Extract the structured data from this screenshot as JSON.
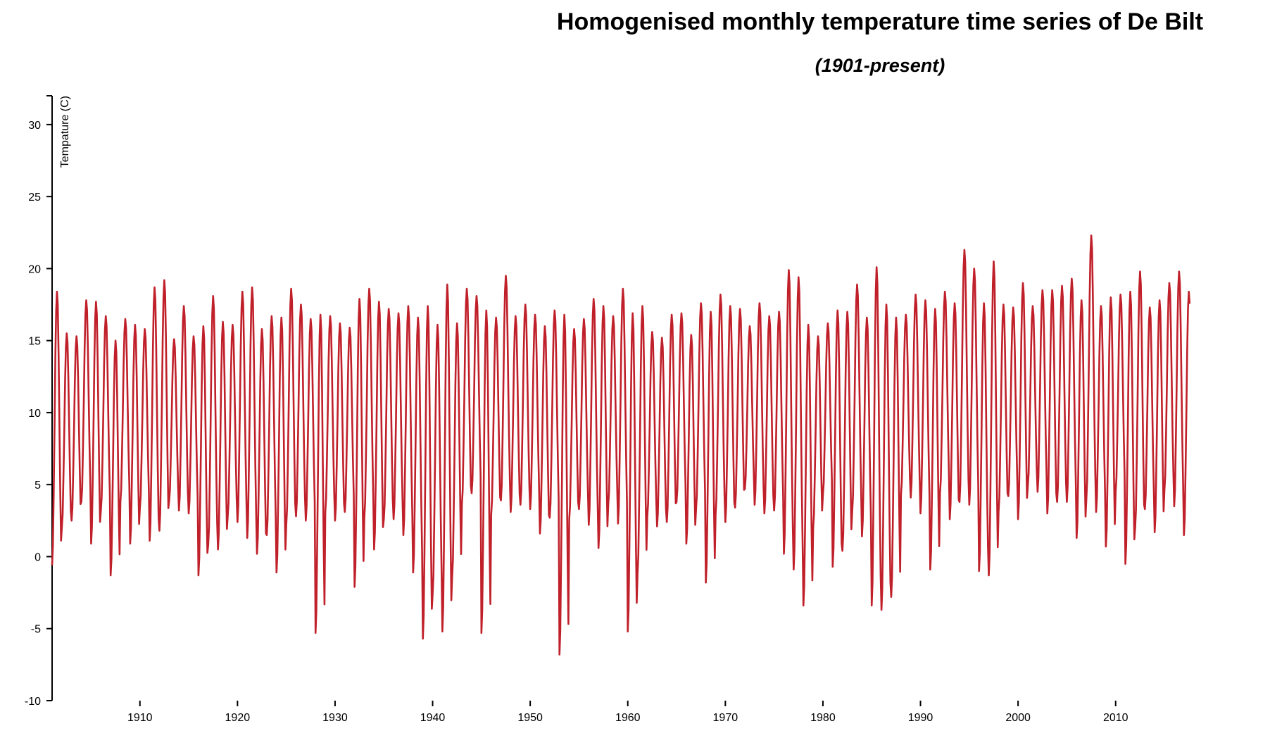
{
  "chart_data": {
    "type": "line",
    "title": "Homogenised monthly temperature time series of De Bilt",
    "subtitle": "(1901-present)",
    "ylabel": "Tempature (C)",
    "xlabel": "",
    "xlim": [
      1901,
      2018.1
    ],
    "ylim": [
      -10,
      32
    ],
    "x_ticks": [
      1910,
      1920,
      1930,
      1940,
      1950,
      1960,
      1970,
      1980,
      1990,
      2000,
      2010
    ],
    "y_ticks": [
      -10,
      -5,
      0,
      5,
      10,
      15,
      20,
      25,
      30
    ],
    "grid": false,
    "series": [
      {
        "color": "#c0202a",
        "start": "1901-01",
        "frequency": "monthly",
        "jan": [
          -0.6,
          2.0,
          2.5,
          3.8,
          0.9,
          3.2,
          -1.3,
          3.8,
          0.9,
          3.4,
          1.1,
          1.8,
          3.9,
          3.2,
          3.0,
          -1.3,
          0.8,
          0.5,
          2.8,
          2.4,
          1.3,
          0.2,
          1.5,
          -1.1,
          2.2,
          2.8,
          2.5,
          -5.3,
          3.1,
          2.5,
          3.1,
          -2.1,
          2.7,
          0.5,
          2.6,
          2.6,
          1.5,
          -1.1,
          -5.7,
          -2.6,
          -5.2,
          -1.4,
          3.6,
          4.4,
          -5.3,
          2.9,
          3.9,
          3.1,
          3.6,
          3.3,
          1.6,
          2.7,
          -6.8,
          2.6,
          3.3,
          2.2,
          0.6,
          3.6,
          2.3,
          -5.2,
          -1.2,
          2.8,
          2.1,
          2.4,
          3.8,
          0.9,
          3.3,
          -1.8,
          2.9,
          2.4,
          3.4,
          4.7,
          3.6,
          3.0,
          3.2,
          0.2,
          -0.9,
          -3.4,
          2.0,
          4.3,
          -0.7,
          0.4,
          3.1,
          1.4,
          -3.4,
          -3.7,
          -2.8,
          4.3,
          4.1,
          3.0,
          -0.9,
          4.4,
          2.6,
          3.8,
          3.6,
          -1.0,
          -1.3,
          3.1,
          4.2,
          2.6,
          4.9,
          4.5,
          3.0,
          3.8,
          3.8,
          1.3,
          4.0,
          3.1,
          0.7,
          4.5,
          -0.5,
          2.0,
          3.3,
          1.7,
          4.6,
          3.5,
          1.5
        ],
        "jul": [
          18.4,
          15.5,
          15.3,
          17.8,
          17.7,
          16.7,
          15.0,
          16.5,
          16.1,
          15.8,
          18.7,
          19.2,
          15.1,
          17.4,
          15.3,
          16.0,
          18.1,
          16.3,
          16.1,
          18.4,
          18.7,
          15.8,
          16.7,
          16.6,
          18.6,
          17.5,
          16.5,
          16.8,
          16.7,
          16.2,
          15.9,
          17.9,
          18.6,
          17.7,
          17.2,
          16.9,
          17.4,
          16.6,
          17.4,
          16.1,
          18.9,
          16.2,
          18.6,
          18.1,
          17.1,
          16.6,
          19.5,
          16.7,
          17.5,
          16.8,
          16.0,
          17.1,
          16.8,
          15.8,
          16.5,
          17.9,
          17.4,
          16.7,
          18.6,
          16.9,
          17.4,
          15.6,
          15.2,
          16.8,
          16.9,
          15.4,
          17.6,
          17.0,
          18.2,
          17.4,
          17.2,
          16.0,
          17.6,
          16.7,
          17.0,
          19.9,
          19.4,
          16.1,
          15.3,
          16.2,
          17.1,
          17.0,
          18.9,
          16.6,
          20.1,
          17.5,
          16.6,
          16.8,
          18.2,
          17.8,
          17.2,
          18.4,
          17.6,
          21.3,
          20.0,
          17.6,
          20.5,
          17.5,
          17.3,
          19.0,
          17.4,
          18.5,
          18.5,
          18.8,
          19.3,
          17.8,
          22.3,
          17.4,
          18.0,
          18.2,
          18.4,
          19.8,
          17.3,
          17.8,
          19.0,
          19.8,
          18.4,
          18.4,
          18.0
        ]
      }
    ]
  }
}
